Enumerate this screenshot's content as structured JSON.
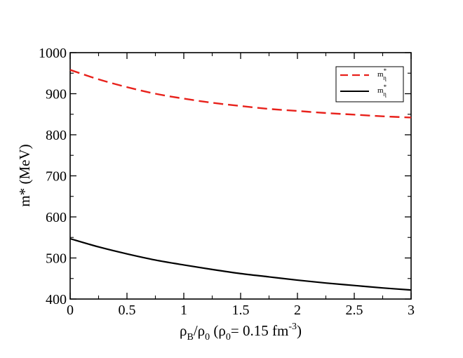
{
  "chart_data": {
    "type": "line",
    "xlabel_parts": {
      "rho": "ρ",
      "sub_b": "B",
      "slash": "/",
      "rho2": "ρ",
      "sub_0": "0",
      "open": " (",
      "rho3": "ρ",
      "sub_0b": "0",
      "eq": "= 0.15 fm",
      "sup": "-3",
      "close": ")"
    },
    "ylabel": "m* (MeV)",
    "xlim": [
      0,
      3
    ],
    "ylim": [
      400,
      1000
    ],
    "xticks": [
      0,
      0.5,
      1,
      1.5,
      2,
      2.5,
      3
    ],
    "xtick_labels": [
      "0",
      "0.5",
      "1",
      "1.5",
      "2",
      "2.5",
      "3"
    ],
    "yticks": [
      400,
      500,
      600,
      700,
      800,
      900,
      1000
    ],
    "ytick_labels": [
      "400",
      "500",
      "600",
      "700",
      "800",
      "900",
      "1000"
    ],
    "legend_placement": "top-right",
    "series": [
      {
        "name": "m*η'",
        "legend_base": "m",
        "legend_sup": "*",
        "legend_sub": "η",
        "color": "#e8211b",
        "style": "dashed",
        "x": [
          0,
          0.25,
          0.5,
          0.75,
          1,
          1.25,
          1.5,
          1.75,
          2,
          2.25,
          2.5,
          2.75,
          3
        ],
        "y": [
          958,
          935,
          916,
          900,
          888,
          878,
          870,
          863,
          858,
          853,
          849,
          845,
          842
        ]
      },
      {
        "name": "m*η",
        "legend_base": "m",
        "legend_sup": "*",
        "legend_sub": "η",
        "color": "#000000",
        "style": "solid",
        "x": [
          0,
          0.25,
          0.5,
          0.75,
          1,
          1.25,
          1.5,
          1.75,
          2,
          2.25,
          2.5,
          2.75,
          3
        ],
        "y": [
          547,
          527,
          510,
          495,
          483,
          472,
          462,
          454,
          446,
          439,
          433,
          427,
          422
        ]
      }
    ]
  }
}
